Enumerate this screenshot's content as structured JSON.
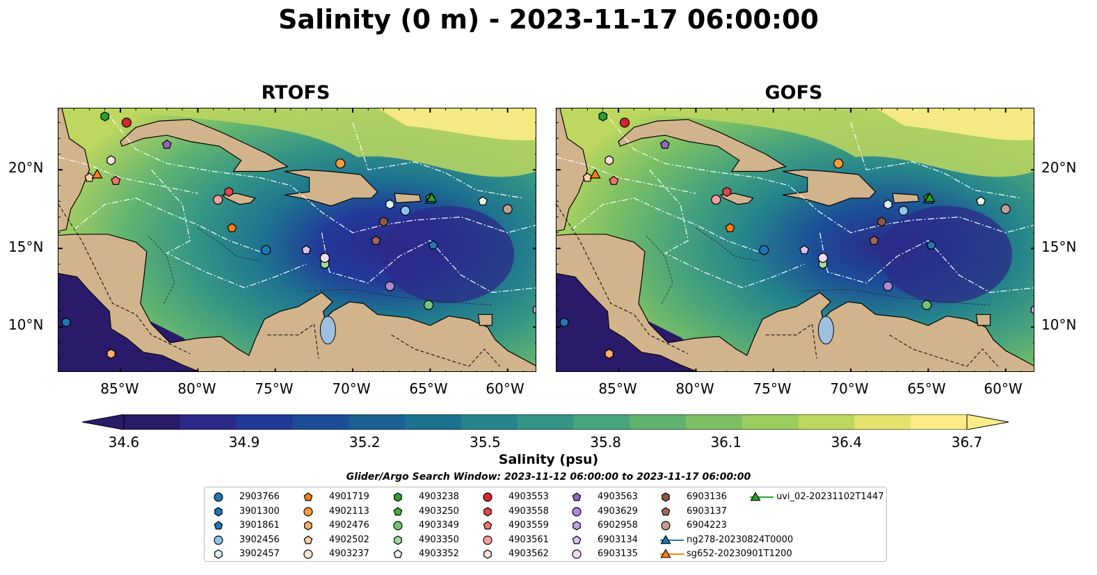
{
  "title": "Salinity (0 m) - 2023-11-17 06:00:00",
  "panels": [
    {
      "title": "RTOFS"
    },
    {
      "title": "GOFS"
    }
  ],
  "lat_labels": [
    "20°N",
    "15°N",
    "10°N"
  ],
  "lon_labels": [
    "85°W",
    "80°W",
    "75°W",
    "70°W",
    "65°W",
    "60°W"
  ],
  "colorbar": {
    "ticks": [
      "34.6",
      "34.9",
      "35.2",
      "35.5",
      "35.8",
      "36.1",
      "36.4",
      "36.7"
    ],
    "label": "Salinity (psu)",
    "colors": [
      "#2a1a6a",
      "#2c2a88",
      "#22399a",
      "#1c4e98",
      "#1a6095",
      "#1d7290",
      "#25848b",
      "#349585",
      "#48a47c",
      "#5fb371",
      "#7cc065",
      "#9bcc5e",
      "#bdd75f",
      "#e5e36e",
      "#fdeb87"
    ]
  },
  "window_note": "Glider/Argo Search Window: 2023-11-12 06:00:00 to 2023-11-17 06:00:00",
  "colors": {
    "land": "#d2b48c",
    "lake": "#9fbfe0",
    "salinity_low": "#2c1d6e",
    "salinity_mid": "#2f8f88",
    "salinity_high": "#fde68a"
  },
  "legend": [
    {
      "label": "2903766",
      "color": "#1f77b4",
      "marker": "circle"
    },
    {
      "label": "3901300",
      "color": "#1f77b4",
      "marker": "hexagon"
    },
    {
      "label": "3901861",
      "color": "#1f77b4",
      "marker": "pentagon"
    },
    {
      "label": "3902456",
      "color": "#8fc3ea",
      "marker": "circle"
    },
    {
      "label": "3902457",
      "color": "#dbeefb",
      "marker": "hexagon"
    },
    {
      "label": "4901719",
      "color": "#ff7f0e",
      "marker": "pentagon"
    },
    {
      "label": "4902113",
      "color": "#fd9a3c",
      "marker": "circle"
    },
    {
      "label": "4902476",
      "color": "#fdae6b",
      "marker": "hexagon"
    },
    {
      "label": "4902502",
      "color": "#fdd0a2",
      "marker": "pentagon"
    },
    {
      "label": "4903237",
      "color": "#fee6ce",
      "marker": "circle"
    },
    {
      "label": "4903238",
      "color": "#2ca02c",
      "marker": "hexagon"
    },
    {
      "label": "4903250",
      "color": "#3db33d",
      "marker": "pentagon"
    },
    {
      "label": "4903349",
      "color": "#74c476",
      "marker": "circle"
    },
    {
      "label": "4903350",
      "color": "#a1d99b",
      "marker": "hexagon"
    },
    {
      "label": "4903352",
      "color": "#e5f5e0",
      "marker": "pentagon"
    },
    {
      "label": "4903553",
      "color": "#d62728",
      "marker": "circle"
    },
    {
      "label": "4903558",
      "color": "#e0454a",
      "marker": "hexagon"
    },
    {
      "label": "4903559",
      "color": "#f07070",
      "marker": "pentagon"
    },
    {
      "label": "4903561",
      "color": "#f4a0a0",
      "marker": "circle"
    },
    {
      "label": "4903562",
      "color": "#fde0dd",
      "marker": "hexagon"
    },
    {
      "label": "4903563",
      "color": "#9467bd",
      "marker": "pentagon"
    },
    {
      "label": "4903629",
      "color": "#ad86d4",
      "marker": "circle"
    },
    {
      "label": "6902958",
      "color": "#c1a3e2",
      "marker": "hexagon"
    },
    {
      "label": "6903134",
      "color": "#d8c0f0",
      "marker": "pentagon"
    },
    {
      "label": "6903135",
      "color": "#f0dcfa",
      "marker": "circle"
    },
    {
      "label": "6903136",
      "color": "#8c564b",
      "marker": "hexagon"
    },
    {
      "label": "6903137",
      "color": "#a0695d",
      "marker": "pentagon"
    },
    {
      "label": "6904223",
      "color": "#c49c94",
      "marker": "circle"
    },
    {
      "label": "ng278-20230824T0000",
      "color": "#1f77b4",
      "marker": "triangle-line"
    },
    {
      "label": "sg652-20230901T1200",
      "color": "#ff7f0e",
      "marker": "triangle-line"
    },
    {
      "label": "uvi_02-20231102T1447",
      "color": "#2ca02c",
      "marker": "triangle-line"
    }
  ],
  "map_markers": [
    {
      "id": "2903766",
      "lon": -75.6,
      "lat": 14.9
    },
    {
      "id": "3901300",
      "lon": -88.5,
      "lat": 10.3
    },
    {
      "id": "3901861",
      "lon": -64.8,
      "lat": 15.2
    },
    {
      "id": "3902456",
      "lon": -66.6,
      "lat": 17.4
    },
    {
      "id": "3902457",
      "lon": -67.6,
      "lat": 17.8
    },
    {
      "id": "4901719",
      "lon": -77.8,
      "lat": 16.3
    },
    {
      "id": "4902113",
      "lon": -70.8,
      "lat": 20.4
    },
    {
      "id": "4902476",
      "lon": -85.6,
      "lat": 8.3
    },
    {
      "id": "4902502",
      "lon": -87.0,
      "lat": 19.5
    },
    {
      "id": "4903237",
      "lon": -71.8,
      "lat": 14.4
    },
    {
      "id": "4903238",
      "lon": -86.0,
      "lat": 23.4
    },
    {
      "id": "4903250",
      "lon": -65.0,
      "lat": 18.2
    },
    {
      "id": "4903349",
      "lon": -65.1,
      "lat": 11.4
    },
    {
      "id": "4903350",
      "lon": -71.8,
      "lat": 14.0
    },
    {
      "id": "4903352",
      "lon": -61.6,
      "lat": 18.0
    },
    {
      "id": "4903553",
      "lon": -84.6,
      "lat": 23.0
    },
    {
      "id": "4903558",
      "lon": -78.0,
      "lat": 18.6
    },
    {
      "id": "4903559",
      "lon": -85.3,
      "lat": 19.3
    },
    {
      "id": "4903561",
      "lon": -78.7,
      "lat": 18.1
    },
    {
      "id": "4903562",
      "lon": -85.6,
      "lat": 20.6
    },
    {
      "id": "4903563",
      "lon": -82.0,
      "lat": 21.6
    },
    {
      "id": "4903629",
      "lon": -67.6,
      "lat": 12.6
    },
    {
      "id": "6902958",
      "lon": -58.1,
      "lat": 11.1
    },
    {
      "id": "6903134",
      "lon": -73.0,
      "lat": 14.9
    },
    {
      "id": "6903135",
      "lon": -71.8,
      "lat": 14.4
    },
    {
      "id": "6903136",
      "lon": -68.0,
      "lat": 16.7
    },
    {
      "id": "6903137",
      "lon": -68.5,
      "lat": 15.5
    },
    {
      "id": "6904223",
      "lon": -60.0,
      "lat": 17.5
    },
    {
      "id": "ng278-20230824T0000",
      "lon": -65.0,
      "lat": 18.1
    },
    {
      "id": "sg652-20230901T1200",
      "lon": -86.5,
      "lat": 19.7
    },
    {
      "id": "uvi_02-20231102T1447",
      "lon": -64.9,
      "lat": 18.2
    }
  ]
}
